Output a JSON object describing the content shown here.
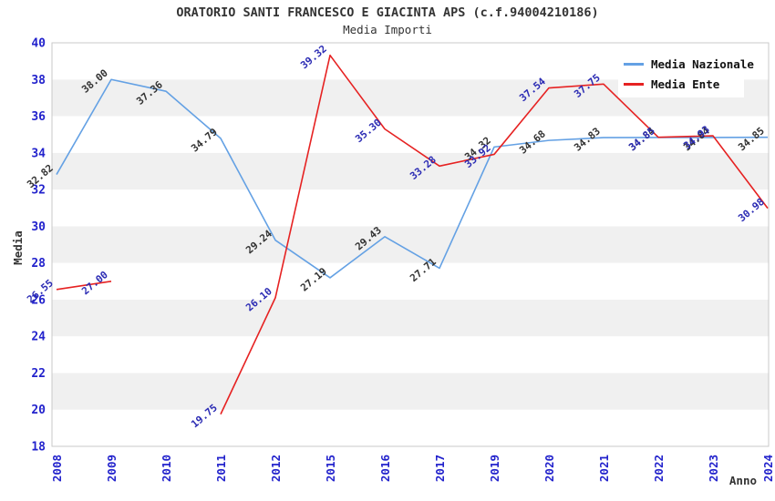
{
  "title": "ORATORIO SANTI FRANCESCO E GIACINTA APS (c.f.94004210186)",
  "subtitle": "Media Importi",
  "legend": {
    "items": [
      {
        "label": "Media Nazionale",
        "color": "#64a1e4"
      },
      {
        "label": "Media Ente",
        "color": "#e62222"
      }
    ]
  },
  "chart_data": {
    "type": "line",
    "title": "ORATORIO SANTI FRANCESCO E GIACINTA APS (c.f.94004210186)",
    "subtitle": "Media Importi",
    "xlabel": "Anno",
    "ylabel": "Media",
    "categories": [
      "2008",
      "2009",
      "2010",
      "2011",
      "2012",
      "2015",
      "2016",
      "2017",
      "2019",
      "2020",
      "2021",
      "2022",
      "2023",
      "2024"
    ],
    "series": [
      {
        "name": "Media Nazionale",
        "color": "#64a1e4",
        "label_color": "#333333",
        "values": [
          32.82,
          38.0,
          37.36,
          34.79,
          29.24,
          27.19,
          29.43,
          27.71,
          34.32,
          34.68,
          34.83,
          34.84,
          34.84,
          34.85
        ]
      },
      {
        "name": "Media Ente",
        "color": "#e62222",
        "label_color": "#2c2cb4",
        "values": [
          26.55,
          27.0,
          null,
          19.75,
          26.1,
          39.32,
          35.3,
          33.28,
          33.92,
          37.54,
          37.75,
          34.85,
          34.93,
          30.98
        ]
      }
    ],
    "ylim": [
      18,
      40
    ],
    "ytick_step": 2,
    "y_ticks": [
      18,
      20,
      22,
      24,
      26,
      28,
      30,
      32,
      34,
      36,
      38,
      40
    ],
    "grid": "striped-bands",
    "legend_position": "top-right",
    "tick_label_color": "#2222cc",
    "stripe_color": "#f0f0f0",
    "frame_color": "#c9c9c9",
    "axis_title_color": "#333333"
  }
}
